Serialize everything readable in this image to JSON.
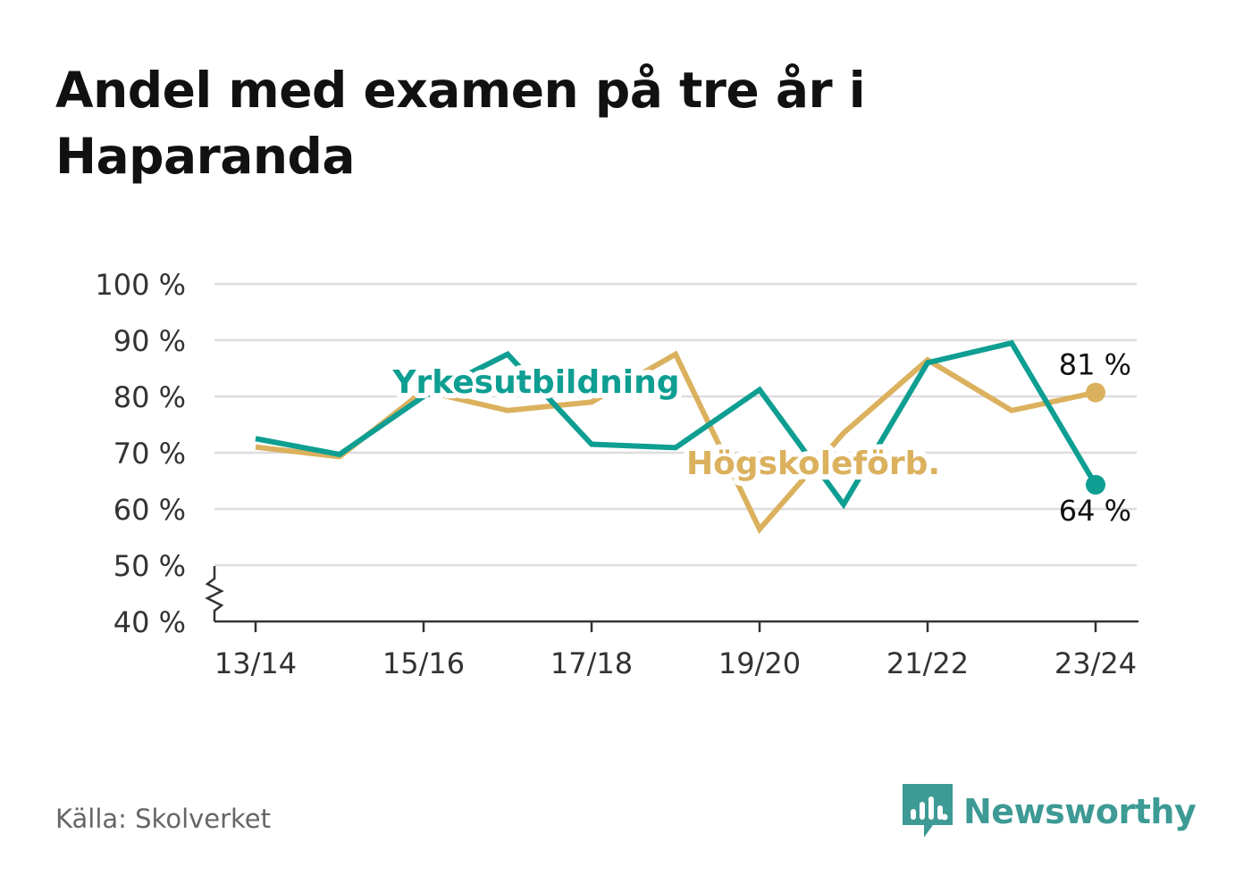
{
  "title": "Andel med examen på tre år i Haparanda",
  "source": "Källa: Skolverket",
  "brand": "Newsworthy",
  "colors": {
    "yrkes": "#0e9e92",
    "hogskole": "#dbb15e",
    "grid": "#dddddd",
    "axis": "#333333",
    "brand": "#3d9a94"
  },
  "chart_data": {
    "type": "line",
    "x": [
      "13/14",
      "14/15",
      "15/16",
      "16/17",
      "17/18",
      "18/19",
      "19/20",
      "20/21",
      "21/22",
      "22/23",
      "23/24"
    ],
    "x_tick_labels": [
      "13/14",
      "15/16",
      "17/18",
      "19/20",
      "21/22",
      "23/24"
    ],
    "y_ticks": [
      40,
      50,
      60,
      70,
      80,
      90,
      100
    ],
    "y_tick_labels": [
      "40 %",
      "50 %",
      "60 %",
      "70 %",
      "80 %",
      "90 %",
      "100 %"
    ],
    "ylim": [
      40,
      100
    ],
    "axis_break": true,
    "grid": true,
    "series": [
      {
        "name": "Yrkesutbildning",
        "color": "#0e9e92",
        "values": [
          72.5,
          69.7,
          80.0,
          87.5,
          71.5,
          70.9,
          81.2,
          60.8,
          86.0,
          89.5,
          64.3
        ],
        "end_label": "64 %"
      },
      {
        "name": "Högskoleförb.",
        "color": "#dbb15e",
        "values": [
          71.0,
          69.3,
          81.0,
          77.5,
          79.0,
          87.5,
          56.4,
          73.5,
          86.5,
          77.5,
          80.7
        ],
        "end_label": "81 %"
      }
    ]
  }
}
